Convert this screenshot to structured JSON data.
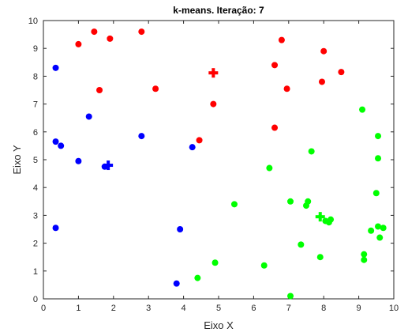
{
  "chart_data": {
    "type": "scatter",
    "title": "k-means. Iteração: 7",
    "xlabel": "Eixo X",
    "ylabel": "Eixo Y",
    "xlim": [
      0,
      10
    ],
    "ylim": [
      0,
      10
    ],
    "xticks": [
      "0",
      "1",
      "2",
      "3",
      "4",
      "5",
      "6",
      "7",
      "8",
      "9",
      "10"
    ],
    "yticks": [
      "0",
      "1",
      "2",
      "3",
      "4",
      "5",
      "6",
      "7",
      "8",
      "9",
      "10"
    ],
    "grid": false,
    "legend": "none",
    "series": [
      {
        "color": "#ff0000",
        "points": [
          [
            1.0,
            9.15
          ],
          [
            1.45,
            9.6
          ],
          [
            1.9,
            9.35
          ],
          [
            2.8,
            9.6
          ],
          [
            1.6,
            7.5
          ],
          [
            3.2,
            7.55
          ],
          [
            4.85,
            7.0
          ],
          [
            4.45,
            5.7
          ],
          [
            6.8,
            9.3
          ],
          [
            6.6,
            8.4
          ],
          [
            6.95,
            7.55
          ],
          [
            6.6,
            6.15
          ],
          [
            8.0,
            8.9
          ],
          [
            8.5,
            8.15
          ],
          [
            7.95,
            7.8
          ]
        ],
        "centroid": [
          4.85,
          8.12
        ]
      },
      {
        "color": "#0000ff",
        "points": [
          [
            0.35,
            8.3
          ],
          [
            1.3,
            6.55
          ],
          [
            0.35,
            5.65
          ],
          [
            0.5,
            5.5
          ],
          [
            1.0,
            4.95
          ],
          [
            1.75,
            4.75
          ],
          [
            2.8,
            5.85
          ],
          [
            4.25,
            5.45
          ],
          [
            0.35,
            2.55
          ],
          [
            3.9,
            2.5
          ],
          [
            3.8,
            0.55
          ]
        ],
        "centroid": [
          1.85,
          4.8
        ]
      },
      {
        "color": "#00ff00",
        "points": [
          [
            9.1,
            6.8
          ],
          [
            9.55,
            5.85
          ],
          [
            7.65,
            5.3
          ],
          [
            9.55,
            5.05
          ],
          [
            6.45,
            4.7
          ],
          [
            9.5,
            3.8
          ],
          [
            5.45,
            3.4
          ],
          [
            7.05,
            3.5
          ],
          [
            7.55,
            3.5
          ],
          [
            7.5,
            3.35
          ],
          [
            8.05,
            2.8
          ],
          [
            8.2,
            2.85
          ],
          [
            8.15,
            2.75
          ],
          [
            9.55,
            2.6
          ],
          [
            9.7,
            2.55
          ],
          [
            9.35,
            2.45
          ],
          [
            9.6,
            2.2
          ],
          [
            7.35,
            1.95
          ],
          [
            9.15,
            1.6
          ],
          [
            9.15,
            1.4
          ],
          [
            7.9,
            1.5
          ],
          [
            4.9,
            1.3
          ],
          [
            6.3,
            1.2
          ],
          [
            4.4,
            0.75
          ],
          [
            7.05,
            0.1
          ]
        ],
        "centroid": [
          7.9,
          2.95
        ]
      }
    ]
  }
}
